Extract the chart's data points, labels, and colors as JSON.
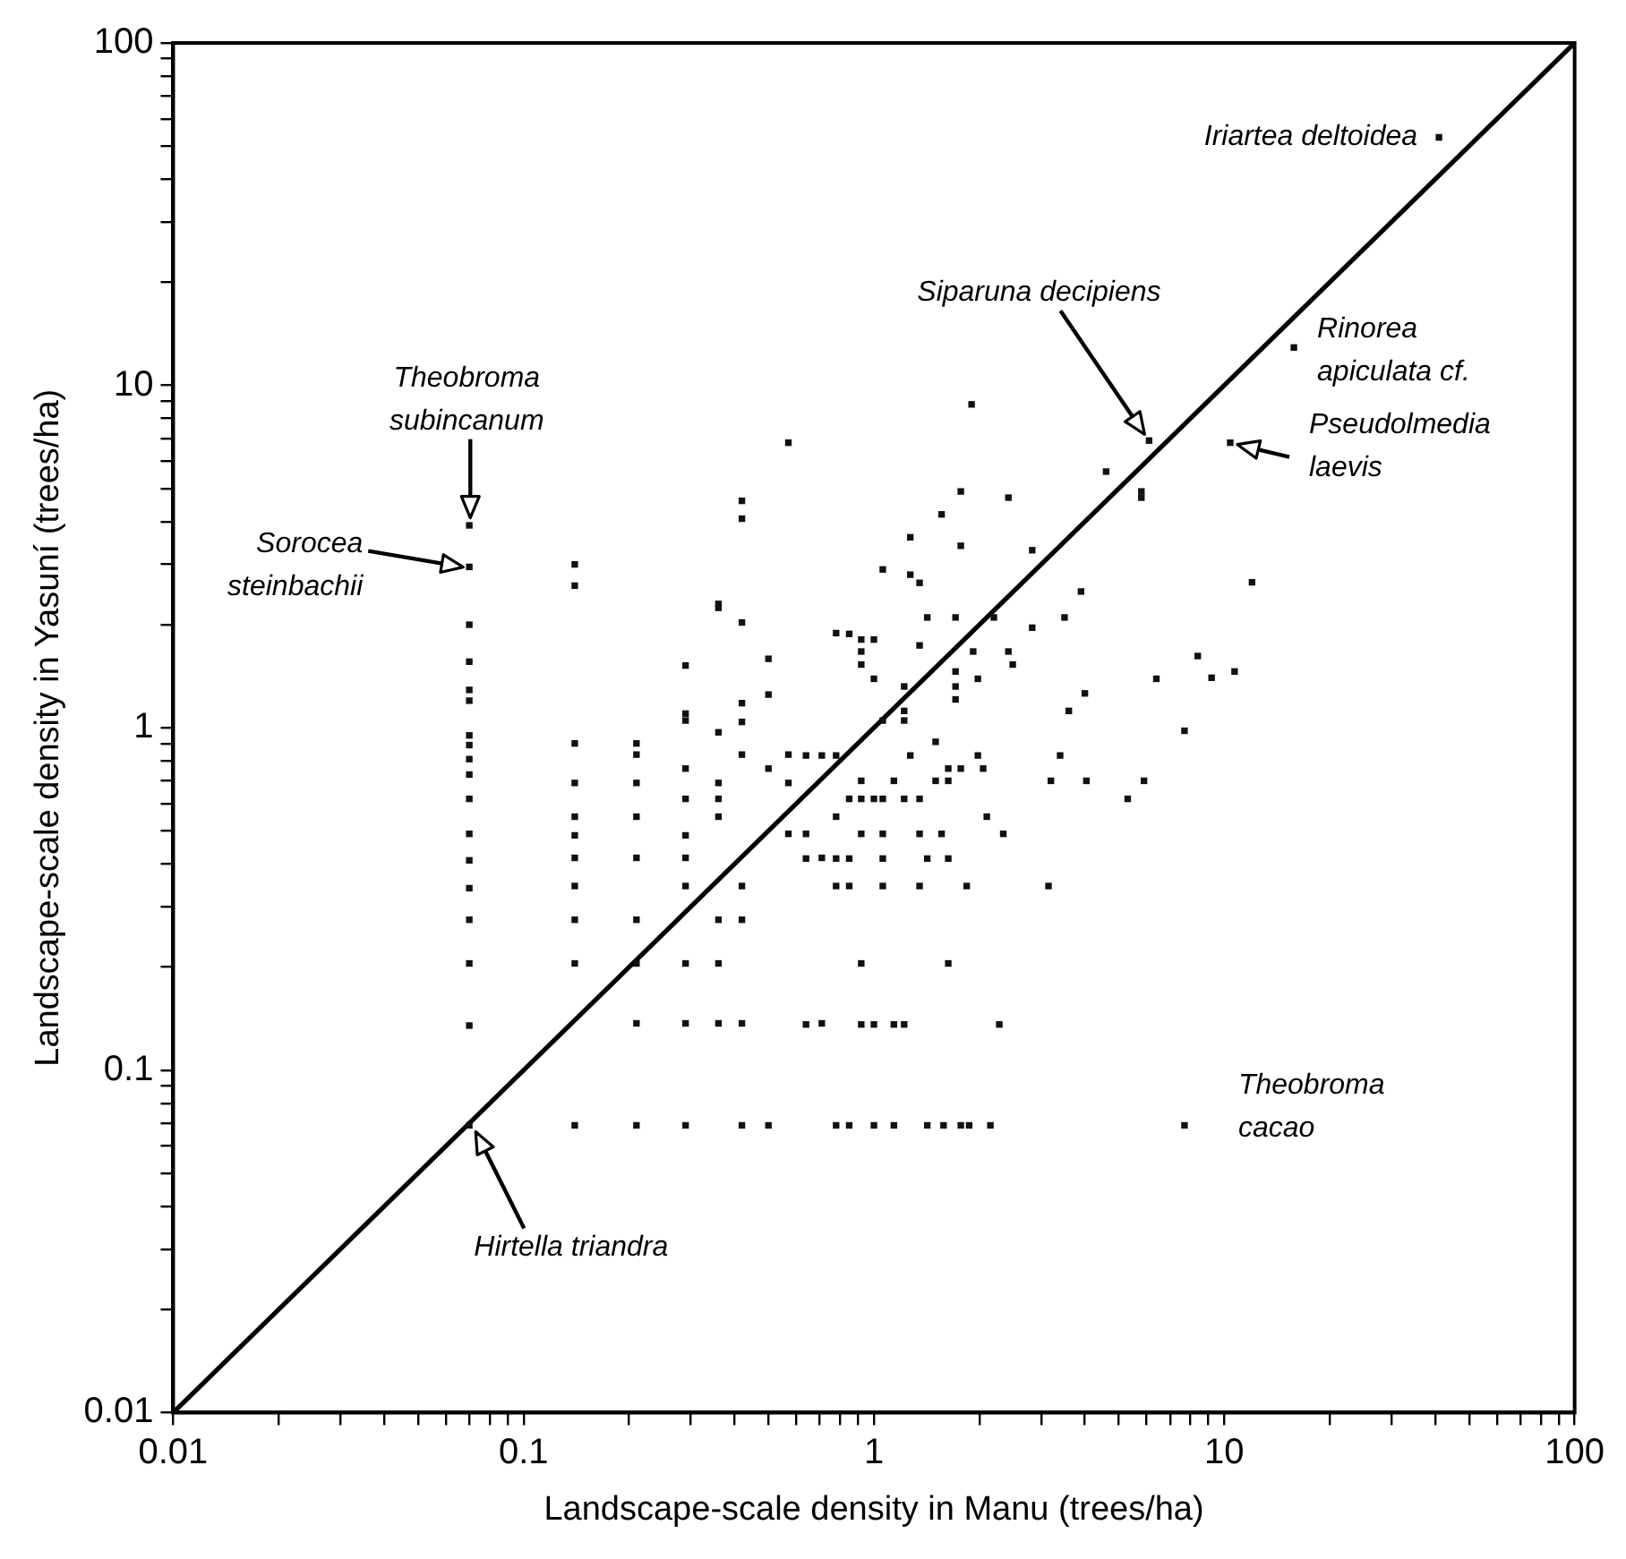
{
  "chart_data": {
    "type": "scatter",
    "xlabel": "Landscape-scale density in Manu (trees/ha)",
    "ylabel": "Landscape-scale density in Yasuní (trees/ha)",
    "log": "xy",
    "grid": false,
    "legend": false,
    "marker": "square",
    "xlim": [
      0.01,
      100
    ],
    "ylim": [
      0.01,
      100
    ],
    "xticks": [
      0.01,
      {
        "value": 0.02,
        "label": null
      },
      {
        "value": 0.03,
        "label": null
      },
      {
        "value": 0.04,
        "label": null
      },
      {
        "value": 0.05,
        "label": null
      },
      {
        "value": 0.06,
        "label": null
      },
      {
        "value": 0.07,
        "label": null
      },
      {
        "value": 0.08,
        "label": null
      },
      {
        "value": 0.09,
        "label": null
      },
      0.1,
      {
        "value": 0.2,
        "label": null
      },
      {
        "value": 0.3,
        "label": null
      },
      {
        "value": 0.4,
        "label": null
      },
      {
        "value": 0.5,
        "label": null
      },
      {
        "value": 0.6,
        "label": null
      },
      {
        "value": 0.7,
        "label": null
      },
      {
        "value": 0.8,
        "label": null
      },
      {
        "value": 0.9,
        "label": null
      },
      1,
      {
        "value": 2,
        "label": null
      },
      {
        "value": 3,
        "label": null
      },
      {
        "value": 4,
        "label": null
      },
      {
        "value": 5,
        "label": null
      },
      {
        "value": 6,
        "label": null
      },
      {
        "value": 7,
        "label": null
      },
      {
        "value": 8,
        "label": null
      },
      {
        "value": 9,
        "label": null
      },
      10,
      {
        "value": 20,
        "label": null
      },
      {
        "value": 30,
        "label": null
      },
      {
        "value": 40,
        "label": null
      },
      {
        "value": 50,
        "label": null
      },
      {
        "value": 60,
        "label": null
      },
      {
        "value": 70,
        "label": null
      },
      {
        "value": 80,
        "label": null
      },
      {
        "value": 90,
        "label": null
      },
      100
    ],
    "yticks": [
      0.01,
      {
        "value": 0.02,
        "label": null
      },
      {
        "value": 0.03,
        "label": null
      },
      {
        "value": 0.04,
        "label": null
      },
      {
        "value": 0.05,
        "label": null
      },
      {
        "value": 0.06,
        "label": null
      },
      {
        "value": 0.07,
        "label": null
      },
      {
        "value": 0.08,
        "label": null
      },
      {
        "value": 0.09,
        "label": null
      },
      0.1,
      {
        "value": 0.2,
        "label": null
      },
      {
        "value": 0.3,
        "label": null
      },
      {
        "value": 0.4,
        "label": null
      },
      {
        "value": 0.5,
        "label": null
      },
      {
        "value": 0.6,
        "label": null
      },
      {
        "value": 0.7,
        "label": null
      },
      {
        "value": 0.8,
        "label": null
      },
      {
        "value": 0.9,
        "label": null
      },
      1,
      {
        "value": 2,
        "label": null
      },
      {
        "value": 3,
        "label": null
      },
      {
        "value": 4,
        "label": null
      },
      {
        "value": 5,
        "label": null
      },
      {
        "value": 6,
        "label": null
      },
      {
        "value": 7,
        "label": null
      },
      {
        "value": 8,
        "label": null
      },
      {
        "value": 9,
        "label": null
      },
      10,
      {
        "value": 20,
        "label": null
      },
      {
        "value": 30,
        "label": null
      },
      {
        "value": 40,
        "label": null
      },
      {
        "value": 50,
        "label": null
      },
      {
        "value": 60,
        "label": null
      },
      {
        "value": 70,
        "label": null
      },
      {
        "value": 80,
        "label": null
      },
      {
        "value": 90,
        "label": null
      },
      100
    ],
    "series": [
      {
        "color": "#111111",
        "x": [
          0.07,
          0.07,
          0.07,
          0.07,
          0.07,
          0.07,
          0.07,
          0.07,
          0.07,
          0.07,
          0.07,
          0.07,
          0.07,
          0.07,
          0.07,
          0.07,
          0.07,
          0.07,
          0.14,
          0.14,
          0.14,
          0.14,
          0.14,
          0.14,
          0.14,
          0.14,
          0.14,
          0.14,
          0.14,
          0.21,
          0.21,
          0.21,
          0.21,
          0.21,
          0.21,
          0.21,
          0.21,
          0.21,
          0.29,
          0.29,
          0.29,
          0.29,
          0.29,
          0.29,
          0.29,
          0.29,
          0.29,
          0.29,
          0.29,
          0.36,
          0.36,
          0.36,
          0.36,
          0.36,
          0.36,
          0.36,
          0.36,
          0.36,
          0.42,
          0.42,
          0.42,
          0.42,
          0.42,
          0.42,
          0.42,
          0.42,
          0.42,
          0.42,
          0.5,
          0.5,
          0.5,
          0.5,
          0.57,
          0.57,
          0.57,
          0.57,
          0.64,
          0.64,
          0.64,
          0.64,
          0.71,
          0.71,
          0.71,
          0.78,
          0.78,
          0.78,
          0.78,
          0.78,
          0.78,
          0.85,
          0.85,
          0.85,
          0.85,
          0.85,
          0.92,
          0.92,
          0.92,
          0.92,
          0.92,
          0.92,
          0.92,
          0.92,
          1.0,
          1.0,
          1.0,
          1.0,
          1.0,
          1.06,
          1.06,
          1.06,
          1.06,
          1.06,
          1.06,
          1.14,
          1.14,
          1.14,
          1.22,
          1.22,
          1.22,
          1.22,
          1.22,
          1.27,
          1.27,
          1.27,
          1.35,
          1.35,
          1.35,
          1.35,
          1.35,
          1.42,
          1.42,
          1.42,
          1.5,
          1.5,
          1.56,
          1.56,
          1.58,
          1.63,
          1.63,
          1.63,
          1.63,
          1.71,
          1.71,
          1.71,
          1.71,
          1.77,
          1.77,
          1.77,
          1.77,
          1.84,
          1.87,
          1.9,
          1.92,
          1.98,
          1.98,
          2.05,
          2.1,
          2.15,
          2.2,
          2.28,
          2.34,
          2.42,
          2.42,
          2.49,
          2.83,
          2.83,
          3.15,
          3.2,
          3.4,
          3.5,
          3.6,
          3.9,
          4.0,
          4.04,
          4.6,
          5.3,
          5.8,
          5.8,
          5.9,
          6.1,
          6.4,
          7.7,
          7.7,
          8.4,
          9.2,
          10.4,
          10.7,
          12,
          15.8,
          41
        ],
        "values": [
          3.9,
          2.95,
          2.0,
          1.56,
          1.29,
          1.2,
          0.95,
          0.89,
          0.81,
          0.73,
          0.62,
          0.49,
          0.41,
          0.34,
          0.275,
          0.205,
          0.135,
          0.069,
          3.0,
          2.6,
          0.9,
          0.69,
          0.55,
          0.485,
          0.417,
          0.345,
          0.275,
          0.205,
          0.069,
          0.9,
          0.835,
          0.69,
          0.55,
          0.417,
          0.275,
          0.205,
          0.137,
          0.069,
          1.52,
          1.1,
          1.05,
          0.76,
          0.62,
          0.485,
          0.417,
          0.345,
          0.205,
          0.137,
          0.069,
          2.3,
          2.24,
          0.97,
          0.69,
          0.62,
          0.55,
          0.275,
          0.205,
          0.137,
          4.6,
          4.08,
          2.03,
          1.18,
          1.04,
          0.835,
          0.345,
          0.275,
          0.137,
          0.069,
          1.59,
          1.25,
          0.76,
          0.069,
          6.8,
          0.835,
          0.69,
          0.49,
          0.83,
          0.49,
          0.415,
          0.136,
          0.83,
          0.417,
          0.137,
          1.89,
          0.83,
          0.55,
          0.415,
          0.345,
          0.069,
          1.88,
          0.62,
          0.415,
          0.345,
          0.069,
          1.81,
          1.67,
          1.53,
          0.7,
          0.62,
          0.49,
          0.205,
          0.136,
          1.81,
          1.39,
          0.62,
          0.136,
          0.069,
          2.9,
          1.05,
          0.62,
          0.49,
          0.415,
          0.345,
          0.7,
          0.136,
          0.069,
          1.32,
          1.12,
          1.05,
          0.62,
          0.136,
          3.6,
          2.8,
          0.83,
          2.65,
          1.74,
          0.62,
          0.49,
          0.345,
          2.1,
          0.415,
          0.069,
          0.91,
          0.7,
          4.2,
          0.49,
          0.069,
          0.76,
          0.7,
          0.415,
          0.205,
          2.1,
          1.46,
          1.32,
          1.21,
          4.9,
          3.4,
          0.76,
          0.069,
          0.345,
          0.069,
          8.8,
          1.67,
          1.39,
          0.83,
          0.76,
          0.55,
          0.069,
          2.1,
          0.136,
          0.49,
          4.7,
          1.67,
          1.53,
          3.3,
          1.96,
          0.345,
          0.7,
          0.83,
          2.1,
          1.12,
          2.5,
          1.26,
          0.7,
          5.6,
          0.62,
          4.9,
          4.7,
          0.7,
          6.9,
          1.39,
          0.98,
          0.069,
          1.62,
          1.4,
          6.8,
          1.46,
          2.66,
          12.9,
          53
        ]
      },
      {
        "type": "line",
        "color": "#000000",
        "line_style": "solid",
        "marker": "none",
        "x": [
          0.01,
          100
        ],
        "values": [
          0.01,
          100
        ]
      }
    ],
    "annotations": [
      {
        "text": "Iriartea deltoidea",
        "x": 41,
        "y": 53
      },
      "Siparuna decipiens",
      {
        "text": "Rinorea apiculata cf.",
        "x": 15.8,
        "y": 12.9
      },
      {
        "text": "Pseudolmedia laevis",
        "x": 10.4,
        "y": 6.8
      },
      "Theobroma subincanum",
      "Sorocea steinbachii",
      "Hirtella triandra",
      {
        "text": "Theobroma cacao",
        "x": 7.7,
        "y": 0.069
      }
    ]
  }
}
